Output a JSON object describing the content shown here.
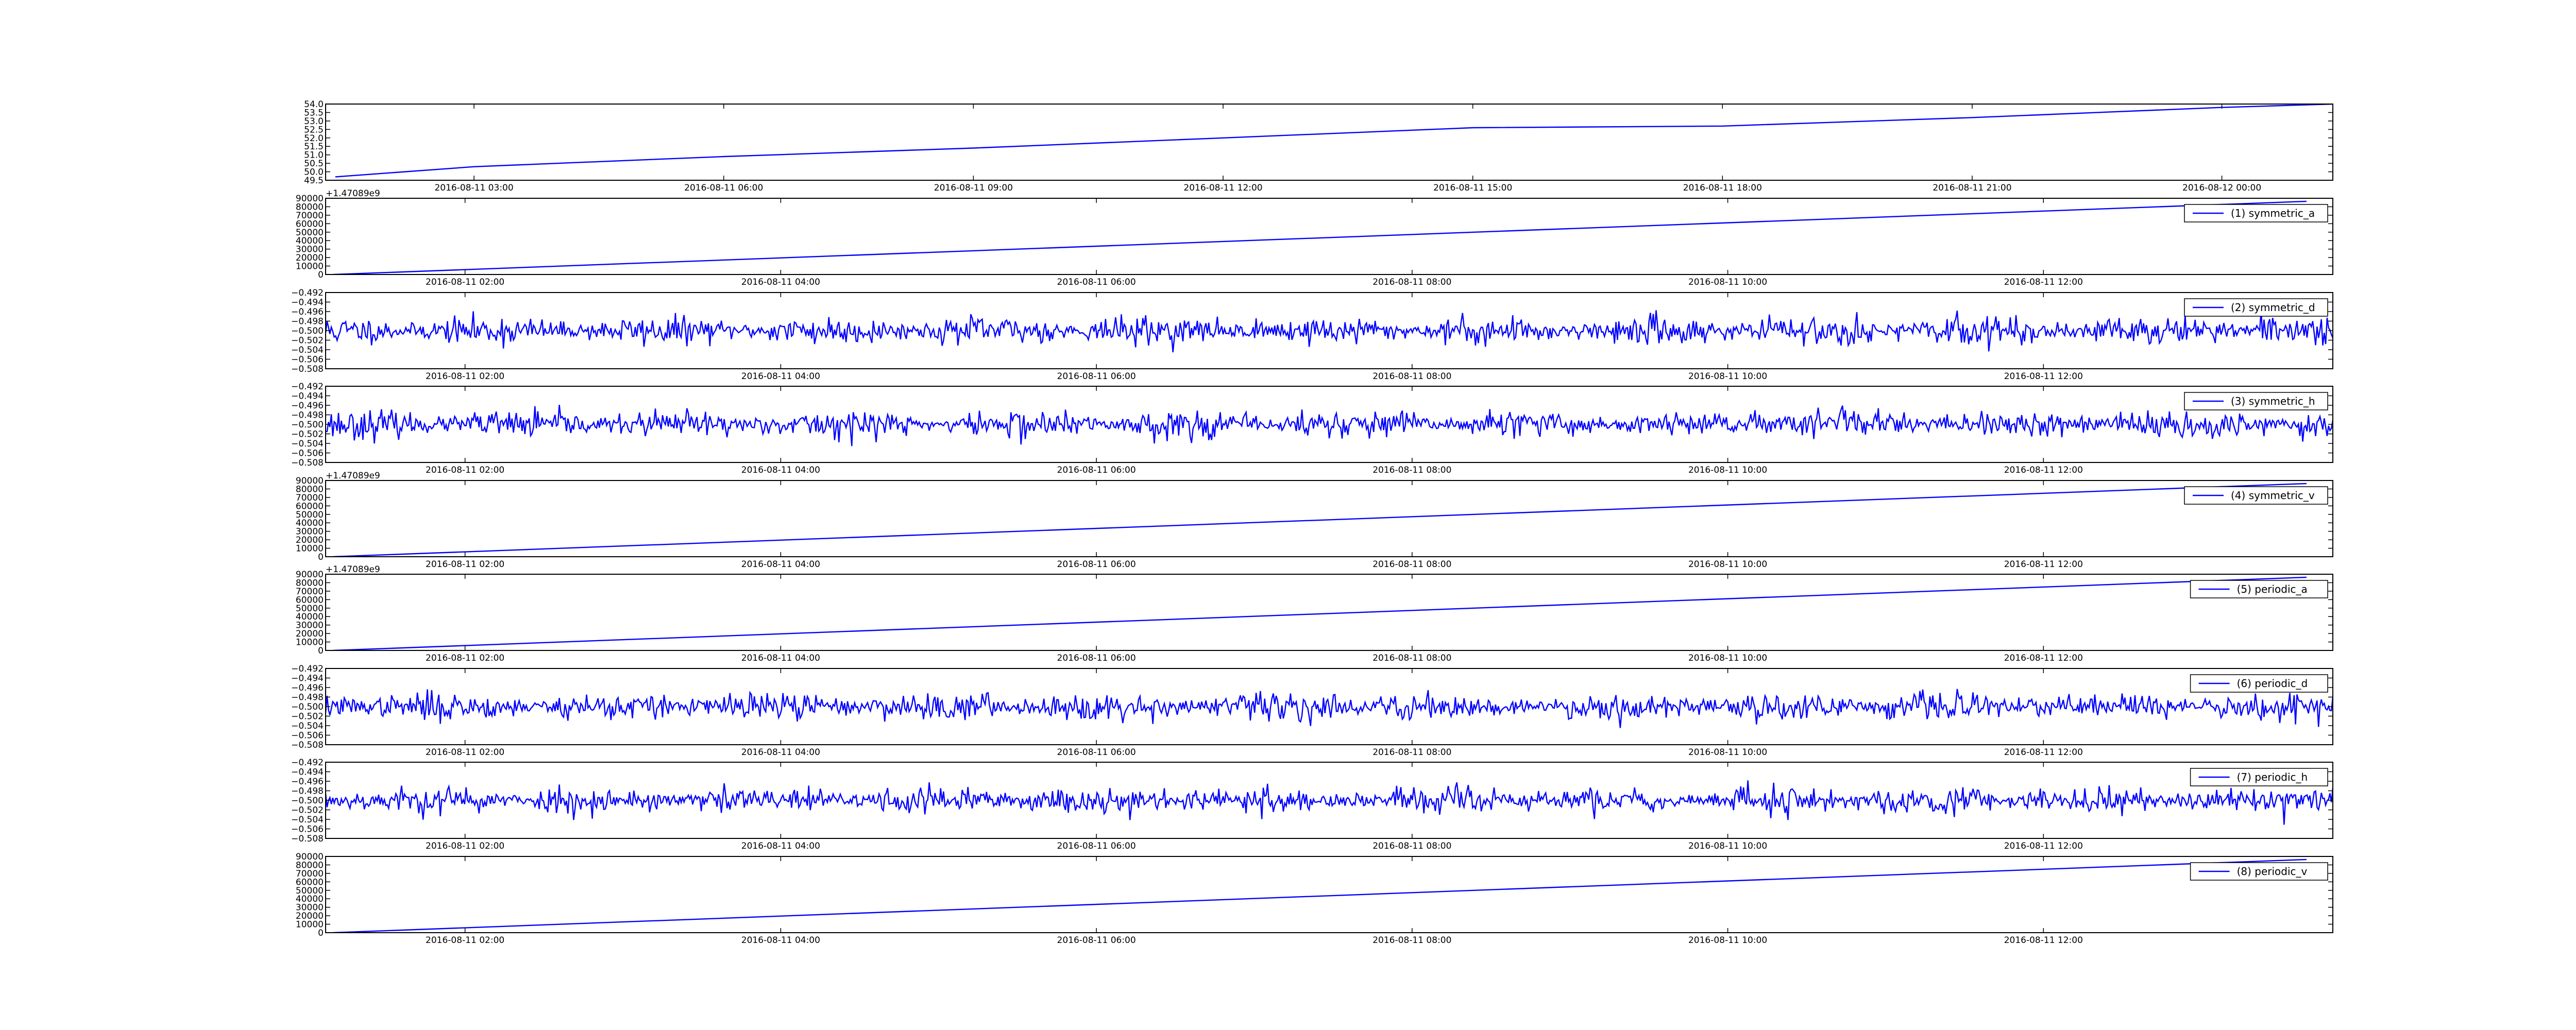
{
  "style": {
    "line_color": "#0000ff",
    "axis_color": "#000000",
    "background": "#ffffff"
  },
  "chart_data": [
    {
      "type": "line",
      "legend": "",
      "ylim": [
        49.5,
        54.0
      ],
      "yticks": [
        "49.5",
        "50.0",
        "50.5",
        "51.0",
        "51.5",
        "52.0",
        "52.5",
        "53.0",
        "53.5",
        "54.0"
      ],
      "xticks": [
        "2016-08-11 03:00",
        "2016-08-11 06:00",
        "2016-08-11 09:00",
        "2016-08-11 12:00",
        "2016-08-11 15:00",
        "2016-08-11 18:00",
        "2016-08-11 21:00",
        "2016-08-12 00:00"
      ],
      "offset": "",
      "x": [
        "2016-08-11 01:20",
        "2016-08-11 03:00",
        "2016-08-11 06:00",
        "2016-08-11 09:00",
        "2016-08-11 12:00",
        "2016-08-11 15:00",
        "2016-08-11 18:00",
        "2016-08-11 21:00",
        "2016-08-12 00:00",
        "2016-08-12 01:20"
      ],
      "y": [
        49.7,
        50.3,
        50.9,
        51.4,
        52.0,
        52.6,
        52.7,
        53.2,
        53.8,
        54.0
      ]
    },
    {
      "type": "line",
      "legend": "(1) symmetric_a",
      "ylim": [
        0,
        90000
      ],
      "yticks": [
        "0",
        "10000",
        "20000",
        "30000",
        "40000",
        "50000",
        "60000",
        "70000",
        "80000",
        "90000"
      ],
      "xticks": [
        "2016-08-11 02:00",
        "2016-08-11 04:00",
        "2016-08-11 06:00",
        "2016-08-11 08:00",
        "2016-08-11 10:00",
        "2016-08-11 12:00"
      ],
      "offset": "+1.47089e9",
      "x": [
        "2016-08-11 01:10",
        "2016-08-11 13:40"
      ],
      "y": [
        0,
        86400
      ]
    },
    {
      "type": "line",
      "legend": "(2) symmetric_d",
      "ylim": [
        -0.508,
        -0.492
      ],
      "yticks": [
        "−0.508",
        "−0.506",
        "−0.504",
        "−0.502",
        "−0.500",
        "−0.498",
        "−0.496",
        "−0.494",
        "−0.492"
      ],
      "xticks": [
        "2016-08-11 02:00",
        "2016-08-11 04:00",
        "2016-08-11 06:00",
        "2016-08-11 08:00",
        "2016-08-11 10:00",
        "2016-08-11 12:00"
      ],
      "offset": "",
      "signal": {
        "kind": "noise",
        "center": -0.5,
        "seed": 11,
        "min": -0.5068,
        "max": -0.4931
      }
    },
    {
      "type": "line",
      "legend": "(3) symmetric_h",
      "ylim": [
        -0.508,
        -0.492
      ],
      "yticks": [
        "−0.508",
        "−0.506",
        "−0.504",
        "−0.502",
        "−0.500",
        "−0.498",
        "−0.496",
        "−0.494",
        "−0.492"
      ],
      "xticks": [
        "2016-08-11 02:00",
        "2016-08-11 04:00",
        "2016-08-11 06:00",
        "2016-08-11 08:00",
        "2016-08-11 10:00",
        "2016-08-11 12:00"
      ],
      "offset": "",
      "signal": {
        "kind": "noise",
        "center": -0.5,
        "seed": 23,
        "min": -0.5062,
        "max": -0.4936
      }
    },
    {
      "type": "line",
      "legend": "(4) symmetric_v",
      "ylim": [
        0,
        90000
      ],
      "yticks": [
        "0",
        "10000",
        "20000",
        "30000",
        "40000",
        "50000",
        "60000",
        "70000",
        "80000",
        "90000"
      ],
      "xticks": [
        "2016-08-11 02:00",
        "2016-08-11 04:00",
        "2016-08-11 06:00",
        "2016-08-11 08:00",
        "2016-08-11 10:00",
        "2016-08-11 12:00"
      ],
      "offset": "+1.47089e9",
      "x": [
        "2016-08-11 01:10",
        "2016-08-11 13:40"
      ],
      "y": [
        0,
        86400
      ]
    },
    {
      "type": "line",
      "legend": "(5) periodic_a",
      "ylim": [
        0,
        90000
      ],
      "yticks": [
        "0",
        "10000",
        "20000",
        "30000",
        "40000",
        "50000",
        "60000",
        "70000",
        "80000",
        "90000"
      ],
      "xticks": [
        "2016-08-11 02:00",
        "2016-08-11 04:00",
        "2016-08-11 06:00",
        "2016-08-11 08:00",
        "2016-08-11 10:00",
        "2016-08-11 12:00"
      ],
      "offset": "+1.47089e9",
      "x": [
        "2016-08-11 01:10",
        "2016-08-11 13:40"
      ],
      "y": [
        0,
        86400
      ]
    },
    {
      "type": "line",
      "legend": "(6) periodic_d",
      "ylim": [
        -0.508,
        -0.492
      ],
      "yticks": [
        "−0.508",
        "−0.506",
        "−0.504",
        "−0.502",
        "−0.500",
        "−0.498",
        "−0.496",
        "−0.494",
        "−0.492"
      ],
      "xticks": [
        "2016-08-11 02:00",
        "2016-08-11 04:00",
        "2016-08-11 06:00",
        "2016-08-11 08:00",
        "2016-08-11 10:00",
        "2016-08-11 12:00"
      ],
      "offset": "",
      "signal": {
        "kind": "noise",
        "center": -0.5,
        "seed": 37,
        "min": -0.5068,
        "max": -0.4933
      }
    },
    {
      "type": "line",
      "legend": "(7) periodic_h",
      "ylim": [
        -0.508,
        -0.492
      ],
      "yticks": [
        "−0.508",
        "−0.506",
        "−0.504",
        "−0.502",
        "−0.500",
        "−0.498",
        "−0.496",
        "−0.494",
        "−0.492"
      ],
      "xticks": [
        "2016-08-11 02:00",
        "2016-08-11 04:00",
        "2016-08-11 06:00",
        "2016-08-11 08:00",
        "2016-08-11 10:00",
        "2016-08-11 12:00"
      ],
      "offset": "",
      "signal": {
        "kind": "noise",
        "center": -0.5,
        "seed": 53,
        "min": -0.5063,
        "max": -0.4938
      }
    },
    {
      "type": "line",
      "legend": "(8) periodic_v",
      "ylim": [
        0,
        90000
      ],
      "yticks": [
        "0",
        "10000",
        "20000",
        "30000",
        "40000",
        "50000",
        "60000",
        "70000",
        "80000",
        "90000"
      ],
      "xticks": [
        "2016-08-11 02:00",
        "2016-08-11 04:00",
        "2016-08-11 06:00",
        "2016-08-11 08:00",
        "2016-08-11 10:00",
        "2016-08-11 12:00"
      ],
      "offset": "",
      "x": [
        "2016-08-11 01:10",
        "2016-08-11 13:40"
      ],
      "y": [
        0,
        86400
      ]
    }
  ]
}
